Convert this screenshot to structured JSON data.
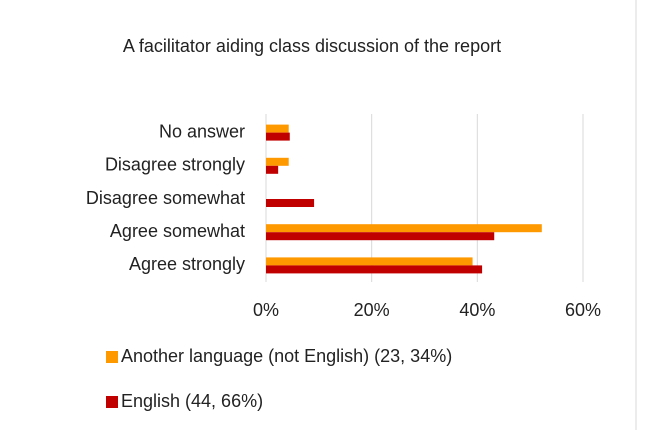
{
  "chart_data": {
    "type": "barh",
    "title": "A facilitator aiding class discussion of the report",
    "categories": [
      "No answer",
      "Disagree strongly",
      "Disagree somewhat",
      "Agree somewhat",
      "Agree strongly"
    ],
    "series": [
      {
        "name": "Another language (not English) (23, 34%)",
        "color": "#ff9900",
        "values": [
          4.3,
          4.3,
          0,
          52.2,
          39.1
        ]
      },
      {
        "name": "English  (44, 66%)",
        "color": "#c00000",
        "values": [
          4.5,
          2.3,
          9.1,
          43.2,
          40.9
        ]
      }
    ],
    "xlim": [
      0,
      60
    ],
    "xticks": [
      {
        "value": 0,
        "label": "0%"
      },
      {
        "value": 20,
        "label": "20%"
      },
      {
        "value": 40,
        "label": "40%"
      },
      {
        "value": 60,
        "label": "60%"
      }
    ],
    "grid": true,
    "legend": "bottom"
  }
}
